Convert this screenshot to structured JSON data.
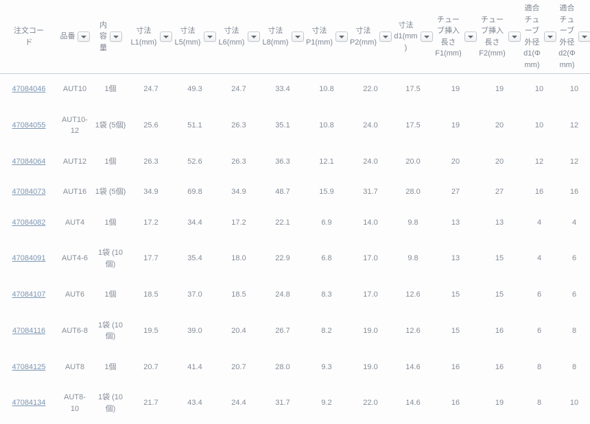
{
  "colors": {
    "link": "#7b95b0",
    "body_text": "#848c95",
    "header_text": "#7d858f",
    "header_border": "#c9cdd2",
    "filter_icon": "#5f6771"
  },
  "table": {
    "columns": [
      {
        "id": "order-code",
        "label": "注文コード",
        "filter": false
      },
      {
        "id": "part-number",
        "label": "品番",
        "filter": true
      },
      {
        "id": "quantity",
        "label": "内容量",
        "filter": true
      },
      {
        "id": "dim-l1",
        "label": "寸法 L1(mm)",
        "filter": true
      },
      {
        "id": "dim-l5",
        "label": "寸法 L5(mm)",
        "filter": true
      },
      {
        "id": "dim-l6",
        "label": "寸法 L6(mm)",
        "filter": true
      },
      {
        "id": "dim-l8",
        "label": "寸法 L8(mm)",
        "filter": true
      },
      {
        "id": "dim-p1",
        "label": "寸法 P1(mm)",
        "filter": true
      },
      {
        "id": "dim-p2",
        "label": "寸法 P2(mm)",
        "filter": true
      },
      {
        "id": "dim-d1",
        "label": "寸法 d1(mm)",
        "filter": true
      },
      {
        "id": "ins-f1",
        "label": "チューブ挿入長さ F1(mm)",
        "filter": true
      },
      {
        "id": "ins-f2",
        "label": "チューブ挿入長さ F2(mm)",
        "filter": true
      },
      {
        "id": "phi-d1",
        "label": "適合チューブ外径 d1(Φmm)",
        "filter": true
      },
      {
        "id": "phi-d2",
        "label": "適合チューブ外径 d2(Φmm)",
        "filter": true
      }
    ],
    "rows": [
      {
        "code": "47084046",
        "values": [
          "AUT10",
          "1個",
          "24.7",
          "49.3",
          "24.7",
          "33.4",
          "10.8",
          "22.0",
          "17.5",
          "19",
          "19",
          "10",
          "10"
        ]
      },
      {
        "code": "47084055",
        "values": [
          "AUT10-12",
          "1袋 (5個)",
          "25.6",
          "51.1",
          "26.3",
          "35.1",
          "10.8",
          "24.0",
          "17.5",
          "19",
          "20",
          "10",
          "12"
        ]
      },
      {
        "code": "47084064",
        "values": [
          "AUT12",
          "1個",
          "26.3",
          "52.6",
          "26.3",
          "36.3",
          "12.1",
          "24.0",
          "20.0",
          "20",
          "20",
          "12",
          "12"
        ]
      },
      {
        "code": "47084073",
        "values": [
          "AUT16",
          "1袋 (5個)",
          "34.9",
          "69.8",
          "34.9",
          "48.7",
          "15.9",
          "31.7",
          "28.0",
          "27",
          "27",
          "16",
          "16"
        ]
      },
      {
        "code": "47084082",
        "values": [
          "AUT4",
          "1個",
          "17.2",
          "34.4",
          "17.2",
          "22.1",
          "6.9",
          "14.0",
          "9.8",
          "13",
          "13",
          "4",
          "4"
        ]
      },
      {
        "code": "47084091",
        "values": [
          "AUT4-6",
          "1袋 (10個)",
          "17.7",
          "35.4",
          "18.0",
          "22.9",
          "6.8",
          "17.0",
          "9.8",
          "13",
          "15",
          "4",
          "6"
        ]
      },
      {
        "code": "47084107",
        "values": [
          "AUT6",
          "1個",
          "18.5",
          "37.0",
          "18.5",
          "24.8",
          "8.3",
          "17.0",
          "12.6",
          "15",
          "15",
          "6",
          "6"
        ]
      },
      {
        "code": "47084116",
        "values": [
          "AUT6-8",
          "1袋 (10個)",
          "19.5",
          "39.0",
          "20.4",
          "26.7",
          "8.2",
          "19.0",
          "12.6",
          "15",
          "16",
          "6",
          "8"
        ]
      },
      {
        "code": "47084125",
        "values": [
          "AUT8",
          "1個",
          "20.7",
          "41.4",
          "20.7",
          "28.0",
          "9.3",
          "19.0",
          "14.6",
          "16",
          "16",
          "8",
          "8"
        ]
      },
      {
        "code": "47084134",
        "values": [
          "AUT8-10",
          "1袋 (10個)",
          "21.7",
          "43.4",
          "24.4",
          "31.7",
          "9.2",
          "22.0",
          "14.6",
          "16",
          "19",
          "8",
          "10"
        ]
      }
    ]
  }
}
